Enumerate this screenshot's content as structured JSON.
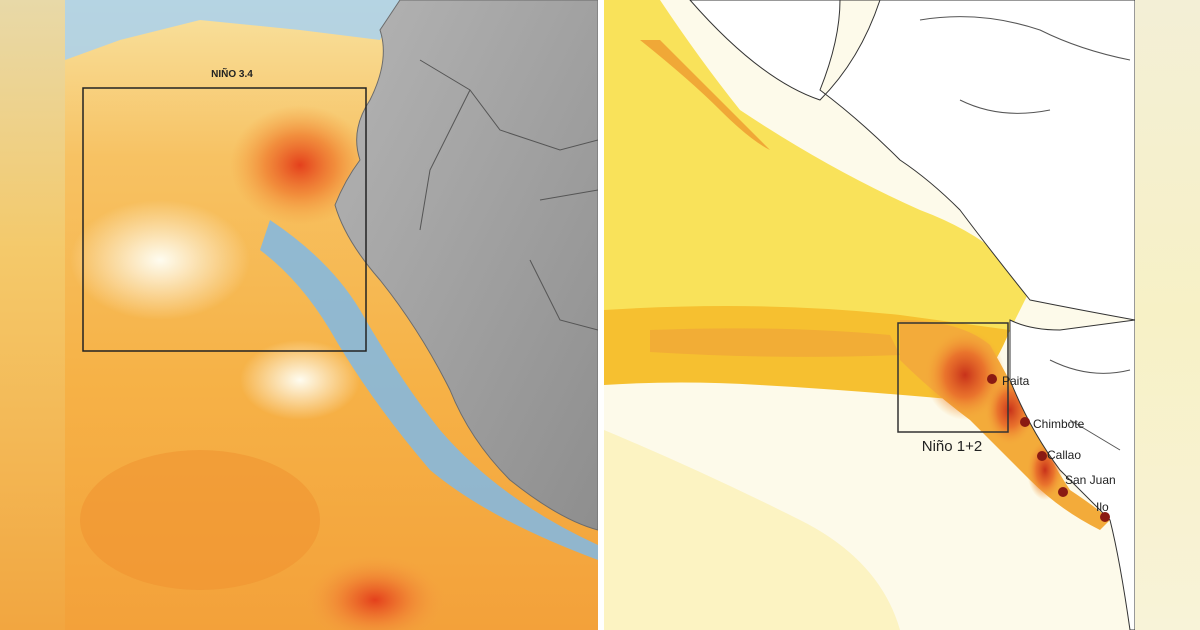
{
  "panels": [
    {
      "box_label": "NIÑO 3.4"
    },
    {
      "box_label": "Niño 1+2",
      "cities": [
        "Paita",
        "Chimbote",
        "Callao",
        "San Juan",
        "Ilo"
      ]
    }
  ]
}
